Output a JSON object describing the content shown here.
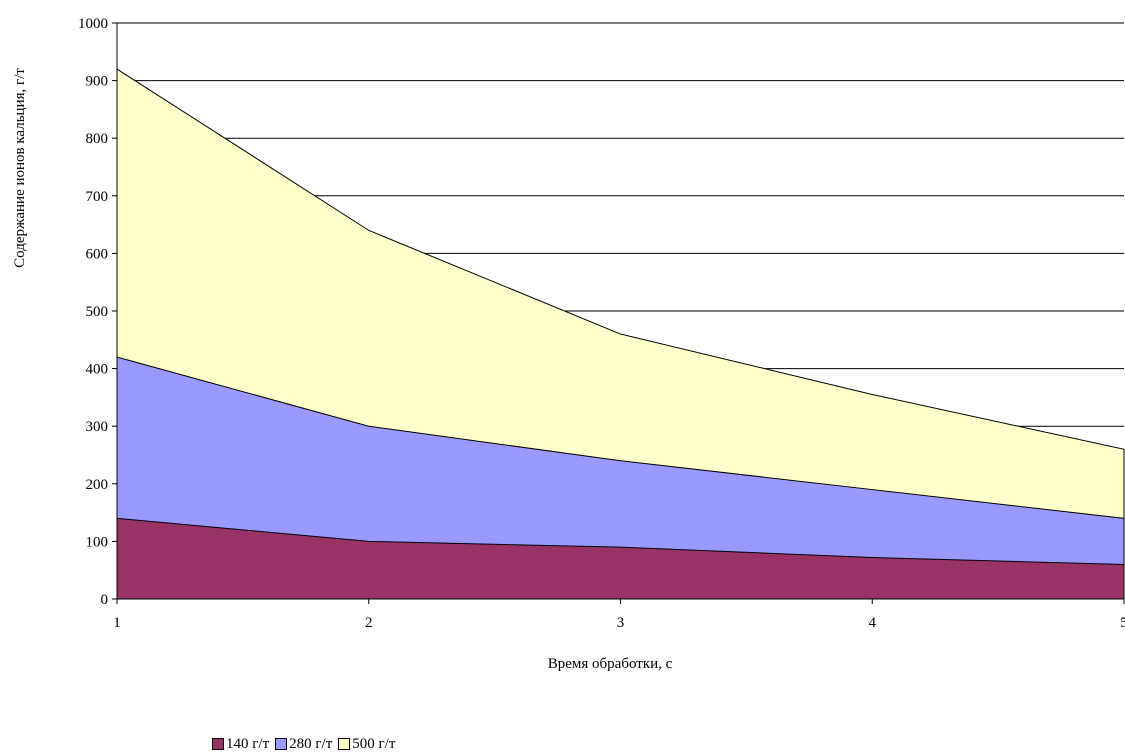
{
  "chart_data": {
    "type": "area",
    "stacked": false,
    "title": "",
    "xlabel": "Время обработки, с",
    "ylabel": "Содержание ионов кальция, г/т",
    "x": [
      1,
      2,
      3,
      4,
      5
    ],
    "x_tick_labels": [
      "1",
      "2",
      "3",
      "4",
      "5"
    ],
    "ylim": [
      0,
      1000
    ],
    "y_tick_labels": [
      "0",
      "100",
      "200",
      "300",
      "400",
      "500",
      "600",
      "700",
      "800",
      "900",
      "1000"
    ],
    "grid": "horizontal major gridlines",
    "legend_position": "bottom-left",
    "series": [
      {
        "name": "500 г/т",
        "color": "#ffffcc",
        "values": [
          920,
          640,
          460,
          355,
          260
        ]
      },
      {
        "name": "280 г/т",
        "color": "#9999ff",
        "values": [
          420,
          300,
          240,
          190,
          140
        ]
      },
      {
        "name": "140 г/т",
        "color": "#993366",
        "values": [
          140,
          100,
          90,
          72,
          60
        ]
      }
    ],
    "legend_order": [
      "140 г/т",
      "280 г/т",
      "500 г/т"
    ]
  }
}
